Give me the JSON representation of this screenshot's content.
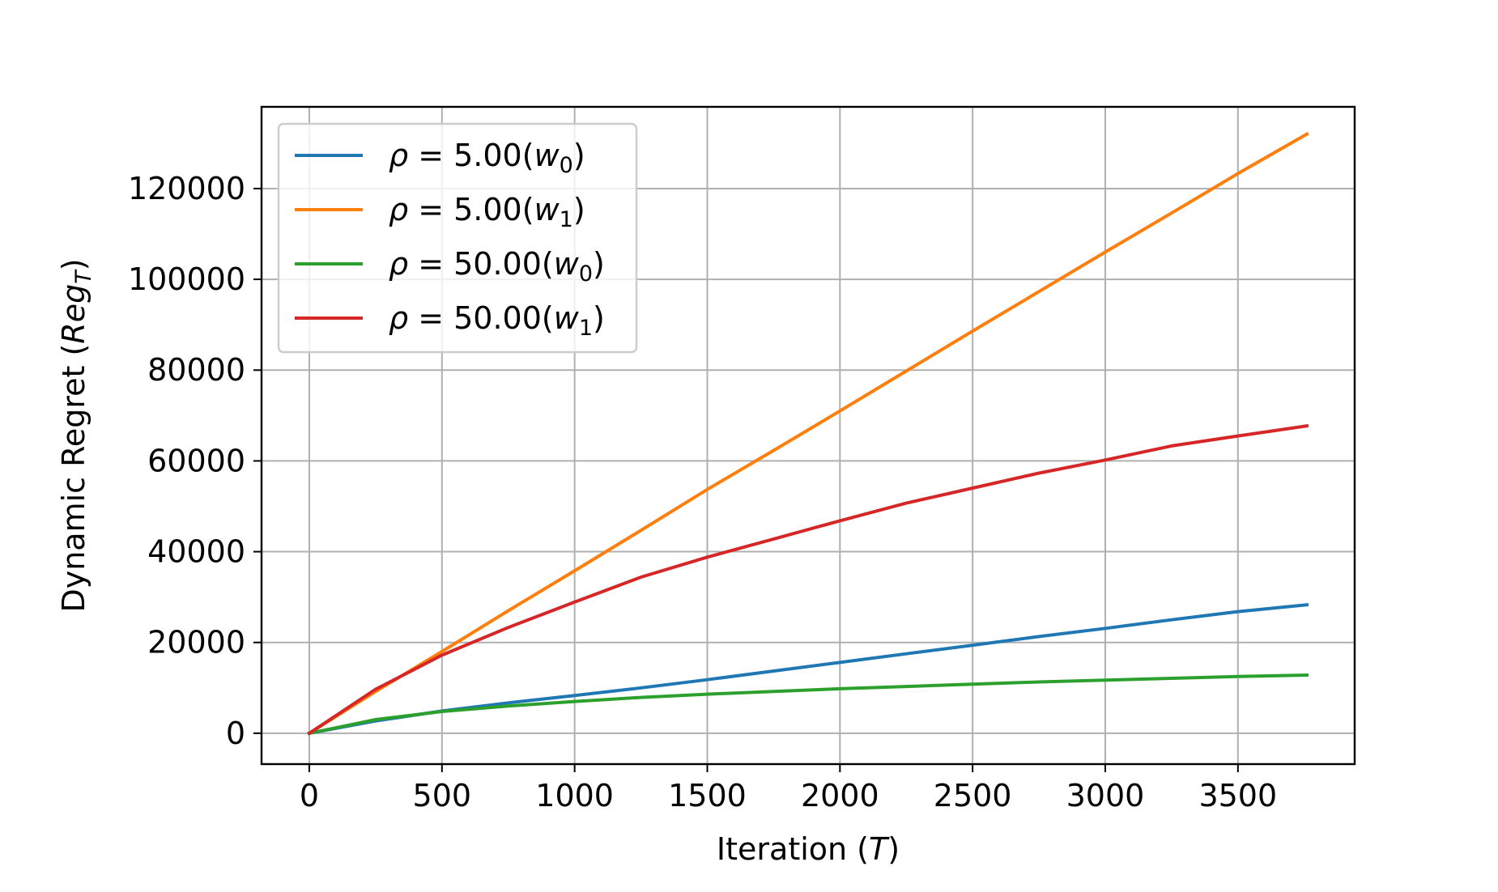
{
  "chart_data": {
    "type": "line",
    "title": "",
    "xlabel": "Iteration (T)",
    "xlabel_parts": [
      "Iteration (",
      "T",
      ")"
    ],
    "ylabel": "Dynamic Regret (Reg_T)",
    "ylabel_parts": [
      "Dynamic Regret (",
      "Reg",
      "T",
      ")"
    ],
    "xlim": [
      -180,
      3940
    ],
    "ylim": [
      -6800,
      138000
    ],
    "xticks": [
      0,
      500,
      1000,
      1500,
      2000,
      2500,
      3000,
      3500
    ],
    "yticks": [
      0,
      20000,
      40000,
      60000,
      80000,
      100000,
      120000
    ],
    "xtick_labels": [
      "0",
      "500",
      "1000",
      "1500",
      "2000",
      "2500",
      "3000",
      "3500"
    ],
    "ytick_labels": [
      "0",
      "20000",
      "40000",
      "60000",
      "80000",
      "100000",
      "120000"
    ],
    "grid": true,
    "legend_position": "top-left",
    "x": [
      0,
      250,
      500,
      750,
      1000,
      1250,
      1500,
      1750,
      2000,
      2250,
      2500,
      2750,
      3000,
      3250,
      3500,
      3760
    ],
    "series": [
      {
        "name": "ρ = 5.00(w0)",
        "name_parts": [
          "ρ",
          " = 5.00(",
          "w",
          "0",
          ")"
        ],
        "color": "#1f77b4",
        "values": [
          0,
          2700,
          4900,
          6700,
          8300,
          10000,
          11800,
          13700,
          15600,
          17500,
          19400,
          21300,
          23100,
          25000,
          26800,
          28300
        ]
      },
      {
        "name": "ρ = 5.00(w1)",
        "name_parts": [
          "ρ",
          " = 5.00(",
          "w",
          "1",
          ")"
        ],
        "color": "#ff7f0e",
        "values": [
          0,
          9200,
          18000,
          27000,
          35800,
          44700,
          53700,
          62300,
          71000,
          79800,
          88600,
          97300,
          106000,
          114600,
          123300,
          132000
        ]
      },
      {
        "name": "ρ = 50.00(w0)",
        "name_parts": [
          "ρ",
          " = 50.00(",
          "w",
          "0",
          ")"
        ],
        "color": "#2ca02c",
        "values": [
          0,
          3000,
          4800,
          6000,
          7000,
          7900,
          8600,
          9200,
          9800,
          10300,
          10800,
          11300,
          11700,
          12100,
          12500,
          12800
        ]
      },
      {
        "name": "ρ = 50.00(w1)",
        "name_parts": [
          "ρ",
          " = 50.00(",
          "w",
          "1",
          ")"
        ],
        "color": "#d62728",
        "values": [
          0,
          9700,
          17200,
          23300,
          28900,
          34400,
          38800,
          42800,
          46800,
          50700,
          54000,
          57300,
          60200,
          63300,
          65500,
          67700
        ]
      }
    ]
  }
}
